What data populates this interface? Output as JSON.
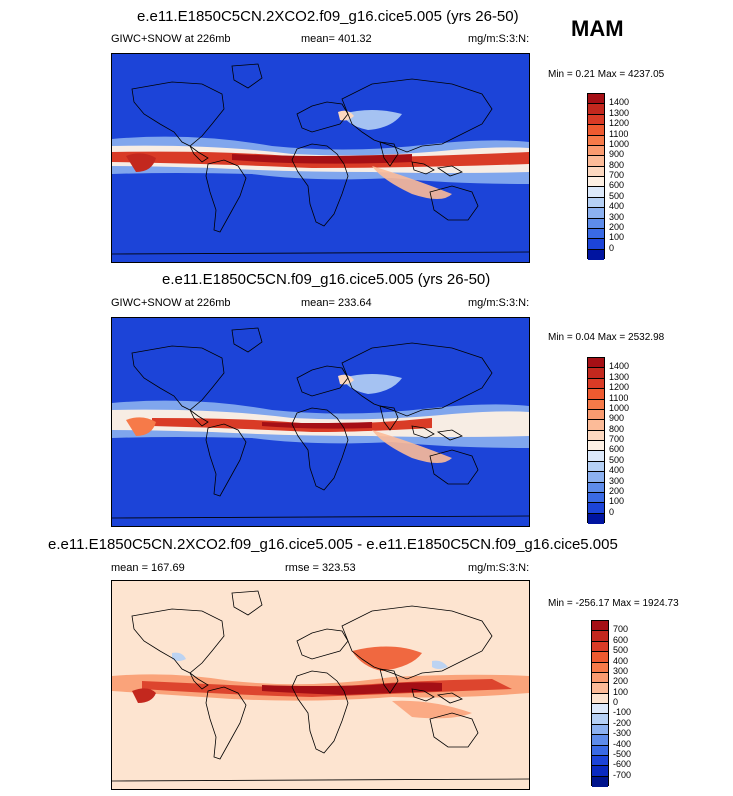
{
  "season_label": "MAM",
  "panels": [
    {
      "title": "e.e11.E1850C5CN.2XCO2.f09_g16.cice5.005 (yrs 26-50)",
      "left_text": "GIWC+SNOW at 226mb",
      "mid_text": "mean= 401.32",
      "units": "mg/m:S:3:N:",
      "minmax": "Min =   0.21 Max = 4237.05"
    },
    {
      "title": "e.e11.E1850C5CN.f09_g16.cice5.005 (yrs 26-50)",
      "left_text": "GIWC+SNOW at 226mb",
      "mid_text": "mean= 233.64",
      "units": "mg/m:S:3:N:",
      "minmax": "Min =   0.04 Max = 2532.98"
    },
    {
      "title": "e.e11.E1850C5CN.2XCO2.f09_g16.cice5.005 - e.e11.E1850C5CN.f09_g16.cice5.005",
      "left_text": "mean = 167.69",
      "mid_text": "rmse = 323.53",
      "units": "mg/m:S:3:N:",
      "minmax": "Min = -256.17 Max = 1924.73"
    }
  ],
  "chart_data": [
    {
      "type": "heatmap",
      "title": "e.e11.E1850C5CN.2XCO2.f09_g16.cice5.005 (yrs 26-50)",
      "variable": "GIWC+SNOW at 226mb",
      "units": "mg/m:S:3:N:",
      "mean": 401.32,
      "min": 0.21,
      "max": 4237.05,
      "colorbar_levels": [
        1400,
        1300,
        1200,
        1100,
        1000,
        900,
        800,
        700,
        600,
        500,
        400,
        300,
        200,
        100,
        0
      ],
      "colorbar_colors": [
        "#a50f15",
        "#c3281e",
        "#d93b26",
        "#ee5a30",
        "#f67a49",
        "#fa9b70",
        "#fcbb98",
        "#fcd8c0",
        "#fdf0e4",
        "#dce9fb",
        "#b5d0f5",
        "#8cb1f0",
        "#5e8cea",
        "#3a6ae4",
        "#1c44d8",
        "#0014a0"
      ]
    },
    {
      "type": "heatmap",
      "title": "e.e11.E1850C5CN.f09_g16.cice5.005 (yrs 26-50)",
      "variable": "GIWC+SNOW at 226mb",
      "units": "mg/m:S:3:N:",
      "mean": 233.64,
      "min": 0.04,
      "max": 2532.98,
      "colorbar_levels": [
        1400,
        1300,
        1200,
        1100,
        1000,
        900,
        800,
        700,
        600,
        500,
        400,
        300,
        200,
        100,
        0
      ],
      "colorbar_colors": [
        "#a50f15",
        "#c3281e",
        "#d93b26",
        "#ee5a30",
        "#f67a49",
        "#fa9b70",
        "#fcbb98",
        "#fcd8c0",
        "#fdf0e4",
        "#dce9fb",
        "#b5d0f5",
        "#8cb1f0",
        "#5e8cea",
        "#3a6ae4",
        "#1c44d8",
        "#0014a0"
      ]
    },
    {
      "type": "heatmap",
      "title": "e.e11.E1850C5CN.2XCO2.f09_g16.cice5.005 - e.e11.E1850C5CN.f09_g16.cice5.005",
      "units": "mg/m:S:3:N:",
      "mean": 167.69,
      "rmse": 323.53,
      "min": -256.17,
      "max": 1924.73,
      "colorbar_levels": [
        700,
        600,
        500,
        400,
        300,
        200,
        100,
        0,
        -100,
        -200,
        -300,
        -400,
        -500,
        -600,
        -700
      ],
      "colorbar_colors": [
        "#a50f15",
        "#c3281e",
        "#d93b26",
        "#ee5a30",
        "#f67a49",
        "#fa9b70",
        "#fcbb98",
        "#fde4d0",
        "#dce9fb",
        "#b5d0f5",
        "#8cb1f0",
        "#5e8cea",
        "#3a6ae4",
        "#1c44d8",
        "#0a2ac0",
        "#00148c"
      ]
    }
  ]
}
